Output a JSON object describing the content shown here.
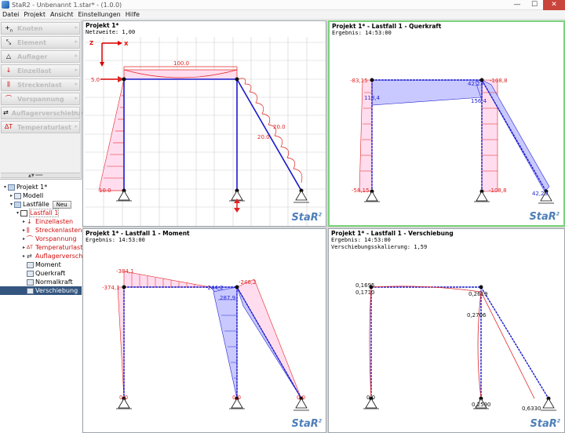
{
  "window": {
    "title": "StaR2 - Unbenannt 1.star* - (1.0.0)",
    "min": "—",
    "max": "☐",
    "close": "✕"
  },
  "menu": [
    "Datei",
    "Projekt",
    "Ansicht",
    "Einstellungen",
    "Hilfe"
  ],
  "toolbar": [
    {
      "label": "Knoten",
      "icon": "node-icon"
    },
    {
      "label": "Element",
      "icon": "element-icon"
    },
    {
      "label": "Auflager",
      "icon": "support-icon"
    },
    {
      "label": "Einzellast",
      "icon": "point-load-icon"
    },
    {
      "label": "Streckenlast",
      "icon": "distributed-load-icon"
    },
    {
      "label": "Vorspannung",
      "icon": "prestress-icon"
    },
    {
      "label": "Auflagerverschiebung",
      "icon": "support-displacement-icon"
    },
    {
      "label": "Temperaturlast",
      "icon": "temperature-icon",
      "icon_text": "ΔT"
    }
  ],
  "tree": {
    "project": "Projekt 1*",
    "modell": "Modell",
    "lastfaelle": "Lastfälle",
    "neu_button": "Neu",
    "lastfall": "Lastfall 1",
    "loads": [
      "Einzellasten",
      "Streckenlasten",
      "Vorspannung",
      "Temperaturlasten",
      "Auflagerverschiebung"
    ],
    "results": [
      "Moment",
      "Querkraft",
      "Normalkraft",
      "Verschiebung"
    ],
    "selected": "Verschiebung"
  },
  "panels": {
    "model": {
      "title": "Projekt 1*",
      "sub": "Netzweite:  1,00",
      "axis_x": "X",
      "axis_z": "Z",
      "labels": {
        "top_load": "100.0",
        "node_load": "5.0",
        "bottom_load": "10.0",
        "incl_1": "20.0",
        "incl_2": "20.0"
      }
    },
    "querkraft": {
      "title": "Projekt 1* - Lastfall 1 - Querkraft",
      "sub": "Ergebnis: 14:53:00",
      "labels": {
        "tl": "-83,15",
        "left": "118,4",
        "bl": "-58,15",
        "mid": "42,23",
        "mid2": "156,4",
        "tr": "-108,8",
        "br": "-108,8",
        "end": "42,23"
      }
    },
    "moment": {
      "title": "Projekt 1* - Lastfall 1 - Moment",
      "sub": "Ergebnis: 14:53:00",
      "labels": {
        "top_left_peak": "-384,1",
        "left": "-374,1",
        "mid1": "-244,2",
        "mid2": "287,9",
        "right": "-246,2",
        "b1": "0,0",
        "b2": "0,0",
        "b3": "0,0"
      }
    },
    "verschiebung": {
      "title": "Projekt 1* - Lastfall 1 - Verschiebung",
      "sub": "Ergebnis: 14:53:00",
      "sub2": "Verschiebungsskalierung: 1,59",
      "labels": {
        "a": "0,1695",
        "b": "0,1710",
        "c": "0,2619",
        "d": "0,2706",
        "e": "0,0",
        "f": "0,2590",
        "g": "0,6330"
      }
    }
  },
  "logo": "StaR",
  "logo_sup": "2",
  "colors": {
    "load": "#e02424",
    "result": "#2525d8",
    "structure": "#1a1acc",
    "active_border": "#79d279"
  }
}
